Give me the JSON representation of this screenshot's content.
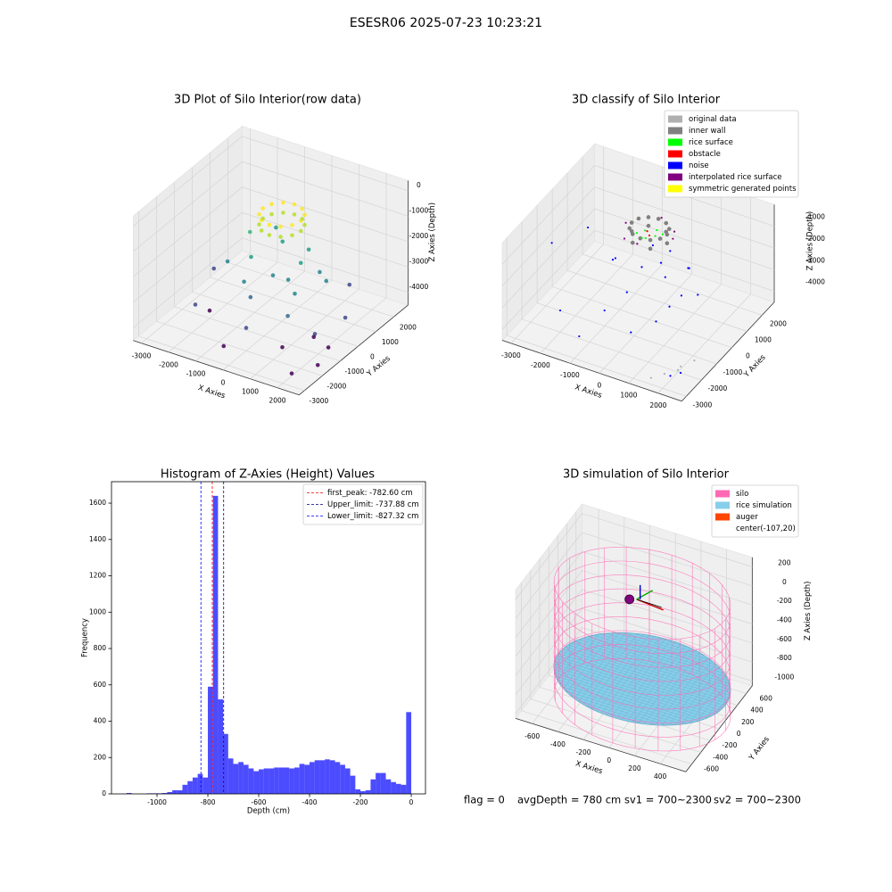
{
  "title": "ESESR06 2025-07-23 10:23:21",
  "chart_data": [
    {
      "type": "scatter3d",
      "title": "3D Plot of Silo Interior(row data)",
      "xlabel": "X Axies",
      "ylabel": "Y Axies",
      "zlabel": "Z Axies (Depth)",
      "xlim": [
        -3300,
        2800
      ],
      "ylim": [
        -3300,
        2800
      ],
      "zlim": [
        -4500,
        400
      ],
      "xticks": [
        -3000,
        -2000,
        -1000,
        0,
        1000,
        2000
      ],
      "yticks": [
        -3000,
        -2000,
        -1000,
        0,
        1000,
        2000
      ],
      "zticks": [
        0,
        -1000,
        -2000,
        -3000,
        -4000
      ],
      "colormap": "viridis",
      "grid": true,
      "x": [
        700,
        606,
        350,
        0,
        -350,
        -606,
        -700,
        -606,
        -350,
        0,
        350,
        606,
        700,
        606,
        350,
        0,
        -350,
        -606,
        -700,
        -606,
        -350,
        0,
        350,
        606,
        -1500,
        -1000,
        -500,
        0,
        500,
        1000,
        1500,
        -800,
        200,
        -1200,
        800,
        -300,
        1200,
        -1800,
        300,
        -2500,
        2000,
        -2000,
        1500,
        2200,
        0,
        -2000,
        1000,
        2000,
        1500,
        -500,
        2500,
        2300
      ],
      "y": [
        0,
        350,
        606,
        700,
        606,
        350,
        0,
        -350,
        -606,
        -700,
        -606,
        -350,
        0,
        350,
        606,
        700,
        606,
        350,
        0,
        -350,
        -606,
        -700,
        -606,
        -350,
        500,
        -200,
        800,
        -500,
        300,
        -800,
        200,
        -900,
        1200,
        1500,
        900,
        -1300,
        -1500,
        -300,
        -100,
        0,
        -1200,
        -1800,
        1500,
        200,
        -2000,
        -1000,
        -1500,
        -2500,
        -500,
        -2500,
        -1800,
        -900
      ],
      "z": [
        -300,
        -300,
        -300,
        -300,
        -300,
        -300,
        -300,
        -300,
        -300,
        -300,
        -300,
        -300,
        -700,
        -700,
        -700,
        -700,
        -700,
        -700,
        -700,
        -700,
        -700,
        -700,
        -700,
        -700,
        -1800,
        -2200,
        -2000,
        -2400,
        -2200,
        -2600,
        -2500,
        -2700,
        -2300,
        -2100,
        -2800,
        -2900,
        -3000,
        -2600,
        -2700,
        -3300,
        -3600,
        -3500,
        -3400,
        -3700,
        -3600,
        -4200,
        -4300,
        -4400,
        -4300,
        -4200,
        -4300,
        -4200
      ]
    },
    {
      "type": "scatter3d",
      "title": "3D classify of Silo Interior",
      "xlabel": "X Axies",
      "ylabel": "Y Axies",
      "zlabel": "Z Axies (Depth)",
      "xlim": [
        -3300,
        2800
      ],
      "ylim": [
        -3300,
        2800
      ],
      "zlim": [
        -4500,
        0
      ],
      "xticks": [
        -3000,
        -2000,
        -1000,
        0,
        1000,
        2000
      ],
      "yticks": [
        -3000,
        -2000,
        -1000,
        0,
        1000,
        2000
      ],
      "zticks": [
        -1000,
        -2000,
        -3000,
        -4000
      ],
      "grid": true,
      "legend": "upper right",
      "series": [
        {
          "name": "original data",
          "color": "#b0b0b0",
          "x": [
            2000,
            1800,
            2300,
            1500,
            2200
          ],
          "y": [
            -2000,
            -2500,
            -1500,
            -2800,
            -2200
          ],
          "z": [
            -4400,
            -4300,
            -4200,
            -4400,
            -4000
          ]
        },
        {
          "name": "inner wall",
          "color": "#808080",
          "x": [
            600,
            520,
            300,
            0,
            -300,
            -520,
            -600,
            -520,
            -300,
            0,
            300,
            520,
            600,
            300,
            -300,
            -600,
            -300,
            300
          ],
          "y": [
            0,
            300,
            520,
            600,
            520,
            300,
            0,
            -300,
            -520,
            -600,
            -520,
            -300,
            0,
            520,
            520,
            0,
            -520,
            -520
          ],
          "z": [
            -300,
            -300,
            -300,
            -300,
            -300,
            -300,
            -300,
            -300,
            -300,
            -300,
            -300,
            -300,
            -700,
            -700,
            -700,
            -700,
            -700,
            -700
          ]
        },
        {
          "name": "rice surface",
          "color": "#00ff00",
          "x": [
            200,
            -200,
            0,
            350,
            -350,
            100,
            -100
          ],
          "y": [
            0,
            100,
            -250,
            200,
            -150,
            300,
            -300
          ],
          "z": [
            -550,
            -550,
            -550,
            -550,
            -550,
            -550,
            -550
          ]
        },
        {
          "name": "obstacle",
          "color": "#ff0000",
          "x": [
            -100,
            50
          ],
          "y": [
            50,
            -100
          ],
          "z": [
            -500,
            -520
          ]
        },
        {
          "name": "noise",
          "color": "#0000ff",
          "x": [
            -2800,
            -2000,
            -1500,
            -1000,
            -500,
            0,
            500,
            1000,
            1500,
            2000,
            -1200,
            800,
            300,
            -300,
            1200,
            -2500,
            2400,
            600,
            900,
            1300,
            -700,
            1800
          ],
          "y": [
            -1000,
            -2000,
            500,
            -300,
            1200,
            -500,
            400,
            -1500,
            -800,
            -2500,
            -2300,
            1000,
            -1800,
            -900,
            300,
            800,
            -2600,
            -400,
            -700,
            -1200,
            -1600,
            -300
          ],
          "z": [
            -1500,
            -3500,
            -2800,
            -1900,
            -2200,
            -1700,
            -1400,
            -3000,
            -2100,
            -4300,
            -4100,
            -2500,
            -3600,
            -2700,
            -1800,
            -2000,
            -3900,
            -1300,
            -1600,
            -2400,
            -3200,
            -2300
          ]
        },
        {
          "name": "interpolated rice surface",
          "color": "#800080",
          "x": [
            800,
            0,
            -800,
            0,
            560,
            -560
          ],
          "y": [
            0,
            800,
            0,
            -800,
            560,
            -560
          ],
          "z": [
            -400,
            -400,
            -400,
            -400,
            -600,
            -600
          ]
        },
        {
          "name": "symmetric generated points",
          "color": "#ffff00",
          "x": [],
          "y": [],
          "z": []
        }
      ]
    },
    {
      "type": "histogram",
      "title": "Histogram of Z-Axies (Height) Values",
      "xlabel": "Depth (cm)",
      "ylabel": "Frequency",
      "color": "#0000ff",
      "alpha": 0.7,
      "xlim": [
        -1179,
        56
      ],
      "ylim": [
        0,
        1718
      ],
      "xticks": [
        -1000,
        -800,
        -600,
        -400,
        -200,
        0
      ],
      "yticks": [
        0,
        200,
        400,
        600,
        800,
        1000,
        1200,
        1400,
        1600
      ],
      "bins": [
        -1120,
        -1100,
        -1080,
        -1060,
        -1040,
        -1020,
        -1000,
        -980,
        -960,
        -940,
        -920,
        -900,
        -880,
        -860,
        -840,
        -820,
        -800,
        -780,
        -760,
        -740,
        -720,
        -700,
        -680,
        -660,
        -640,
        -620,
        -600,
        -580,
        -560,
        -540,
        -520,
        -500,
        -480,
        -460,
        -440,
        -420,
        -400,
        -380,
        -360,
        -340,
        -320,
        -300,
        -280,
        -260,
        -240,
        -220,
        -200,
        -180,
        -160,
        -140,
        -120,
        -100,
        -80,
        -60,
        -40,
        -20,
        0
      ],
      "values": [
        5,
        0,
        0,
        0,
        3,
        3,
        3,
        5,
        10,
        20,
        20,
        50,
        70,
        90,
        110,
        90,
        590,
        1640,
        520,
        330,
        195,
        165,
        175,
        160,
        140,
        125,
        135,
        140,
        140,
        145,
        145,
        145,
        140,
        145,
        165,
        160,
        175,
        185,
        185,
        190,
        185,
        175,
        160,
        140,
        100,
        25,
        15,
        20,
        80,
        115,
        115,
        80,
        65,
        55,
        50,
        450
      ],
      "legend": "upper right",
      "vlines": [
        {
          "name": "first_peak: -782.60 cm",
          "value": -782.6,
          "color": "#ff0000"
        },
        {
          "name": "Upper_limit: -737.88 cm",
          "value": -737.88,
          "color": "#000080"
        },
        {
          "name": "Lower_limit: -827.32 cm",
          "value": -827.32,
          "color": "#0000ff"
        }
      ]
    },
    {
      "type": "simulation3d",
      "title": "3D simulation of Silo Interior",
      "xlabel": "X Axies",
      "ylabel": "Y Axies",
      "zlabel": "Z Axies (Depth)",
      "xlim": [
        -730,
        600
      ],
      "ylim": [
        -730,
        730
      ],
      "zlim": [
        -1050,
        300
      ],
      "xticks": [
        -600,
        -400,
        -200,
        0,
        200,
        400
      ],
      "yticks": [
        -600,
        -400,
        -200,
        0,
        200,
        400,
        600
      ],
      "zticks": [
        200,
        0,
        -200,
        -400,
        -600,
        -800,
        -1000
      ],
      "grid": true,
      "legend": "upper right",
      "series": [
        {
          "name": "silo",
          "color": "#ff69b4",
          "radius": 650,
          "z": [
            -1050,
            120
          ]
        },
        {
          "name": "rice simulation",
          "color": "#87ceeb",
          "radius": 650,
          "z": -780
        },
        {
          "name": "auger",
          "color": "#ff4500",
          "marker_color": "#800080",
          "x": -107,
          "y": 20,
          "z": 0
        },
        {
          "name": "center(-107,20)"
        }
      ]
    }
  ],
  "status": [
    "flag = 0",
    "avgDepth = 780 cm",
    "sv1 = 700~2300",
    "sv2 = 700~2300"
  ]
}
